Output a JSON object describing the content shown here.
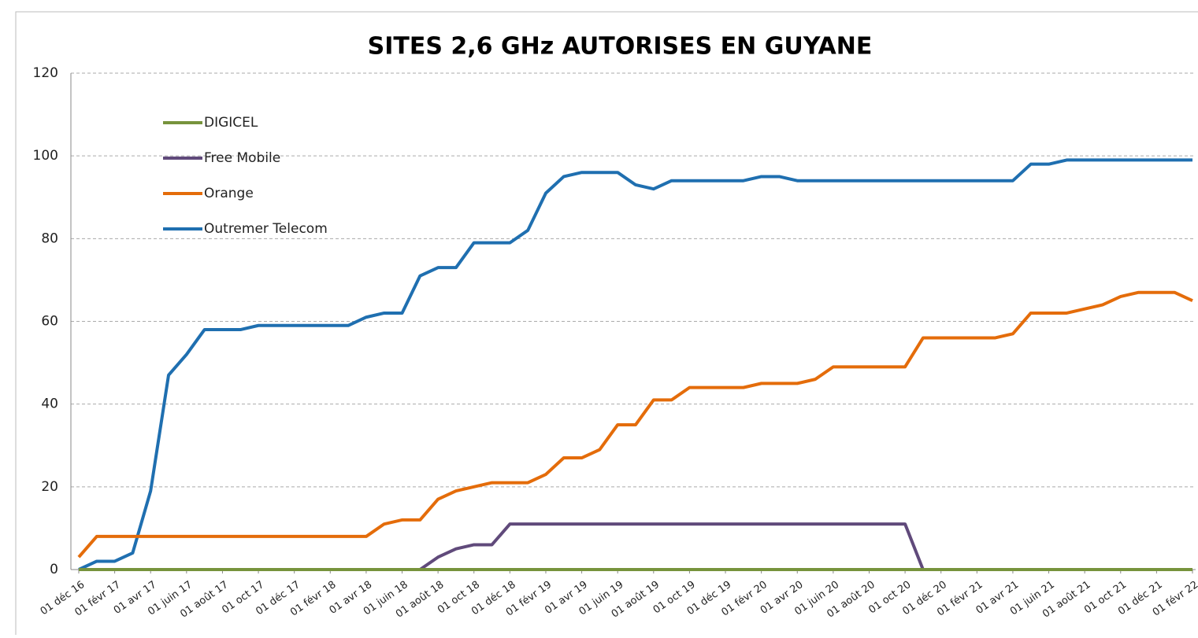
{
  "chart_data": {
    "type": "line",
    "title": "SITES 2,6 GHz AUTORISES EN GUYANE",
    "categories": [
      "01 déc 16",
      null,
      "01 févr 17",
      null,
      "01 avr 17",
      null,
      "01 juin 17",
      null,
      "01 août 17",
      null,
      "01 oct 17",
      null,
      "01 déc 17",
      null,
      "01 févr 18",
      null,
      "01 avr 18",
      null,
      "01 juin 18",
      null,
      "01 août 18",
      null,
      "01 oct 18",
      null,
      "01 déc 18",
      null,
      "01 févr 19",
      null,
      "01 avr 19",
      null,
      "01 juin 19",
      null,
      "01 août 19",
      null,
      "01 oct 19",
      null,
      "01 déc 19",
      null,
      "01 févr 20",
      null,
      "01 avr 20",
      null,
      "01 juin 20",
      null,
      "01 août 20",
      null,
      "01 oct 20",
      null,
      "01 déc 20",
      null,
      "01 févr 21",
      null,
      "01 avr 21",
      null,
      "01 juin 21",
      null,
      "01 août 21",
      null,
      "01 oct 21",
      null,
      "01 déc 21",
      null,
      "01 févr 22"
    ],
    "series": [
      {
        "name": "DIGICEL",
        "color": "#77933c",
        "values": [
          0,
          0,
          0,
          0,
          0,
          0,
          0,
          0,
          0,
          0,
          0,
          0,
          0,
          0,
          0,
          0,
          0,
          0,
          0,
          0,
          0,
          0,
          0,
          0,
          0,
          0,
          0,
          0,
          0,
          0,
          0,
          0,
          0,
          0,
          0,
          0,
          0,
          0,
          0,
          0,
          0,
          0,
          0,
          0,
          0,
          0,
          0,
          0,
          0,
          0,
          0,
          0,
          0,
          0,
          0,
          0,
          0,
          0,
          0,
          0,
          0,
          0,
          0
        ]
      },
      {
        "name": "Free Mobile",
        "color": "#604a7b",
        "values": [
          0,
          0,
          0,
          0,
          0,
          0,
          0,
          0,
          0,
          0,
          0,
          0,
          0,
          0,
          0,
          0,
          0,
          0,
          0,
          0,
          3,
          5,
          6,
          6,
          11,
          11,
          11,
          11,
          11,
          11,
          11,
          11,
          11,
          11,
          11,
          11,
          11,
          11,
          11,
          11,
          11,
          11,
          11,
          11,
          11,
          11,
          11,
          0,
          0,
          0,
          0,
          0,
          0,
          0,
          0,
          0,
          0,
          0,
          0,
          0,
          0,
          0,
          0
        ]
      },
      {
        "name": "Orange",
        "color": "#e46c0a",
        "values": [
          3,
          8,
          8,
          8,
          8,
          8,
          8,
          8,
          8,
          8,
          8,
          8,
          8,
          8,
          8,
          8,
          8,
          11,
          12,
          12,
          17,
          19,
          20,
          21,
          21,
          21,
          23,
          27,
          27,
          29,
          35,
          35,
          41,
          41,
          44,
          44,
          44,
          44,
          45,
          45,
          45,
          46,
          49,
          49,
          49,
          49,
          49,
          56,
          56,
          56,
          56,
          56,
          57,
          62,
          62,
          62,
          63,
          64,
          66,
          67,
          67,
          67,
          65
        ]
      },
      {
        "name": "Outremer Telecom",
        "color": "#1f6fb0",
        "values": [
          0,
          2,
          2,
          4,
          19,
          47,
          52,
          58,
          58,
          58,
          59,
          59,
          59,
          59,
          59,
          59,
          61,
          62,
          62,
          71,
          73,
          73,
          79,
          79,
          79,
          82,
          91,
          95,
          96,
          96,
          96,
          93,
          92,
          94,
          94,
          94,
          94,
          94,
          95,
          95,
          94,
          94,
          94,
          94,
          94,
          94,
          94,
          94,
          94,
          94,
          94,
          94,
          94,
          98,
          98,
          99,
          99,
          99,
          99,
          99,
          99,
          99,
          99
        ]
      }
    ],
    "ylim": [
      0,
      120
    ],
    "yticks": [
      0,
      20,
      40,
      60,
      80,
      100,
      120
    ],
    "grid": true,
    "legend": "upper left"
  }
}
